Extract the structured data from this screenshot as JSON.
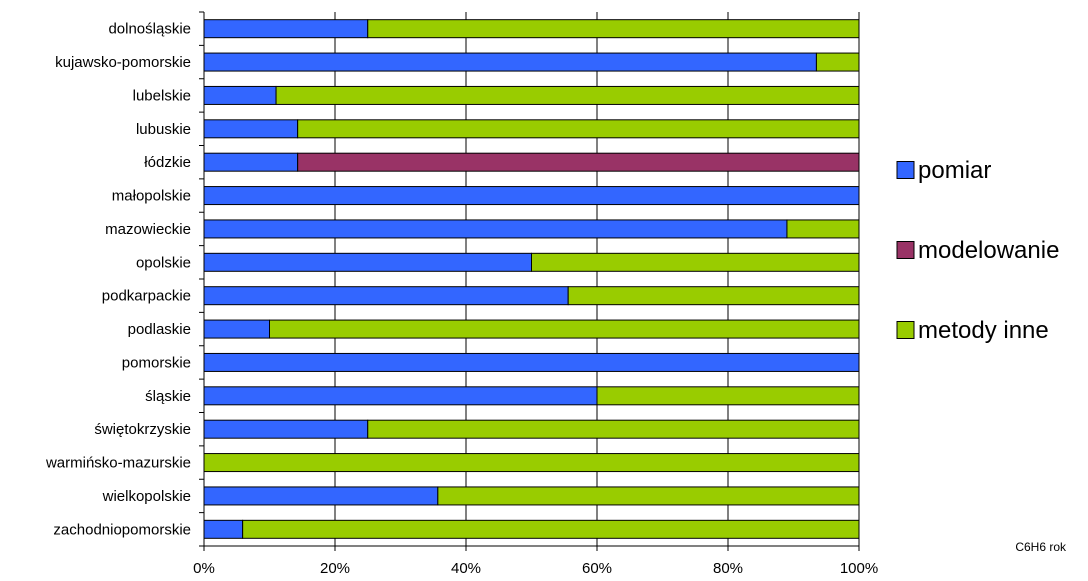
{
  "chart_data": {
    "type": "bar",
    "orientation": "horizontal",
    "stacked": "percent",
    "categories": [
      "dolnośląskie",
      "kujawsko-pomorskie",
      "lubelskie",
      "lubuskie",
      "łódzkie",
      "małopolskie",
      "mazowieckie",
      "opolskie",
      "podkarpackie",
      "podlaskie",
      "pomorskie",
      "śląskie",
      "świętokrzyskie",
      "warmińsko-mazurskie",
      "wielkopolskie",
      "zachodniopomorskie"
    ],
    "series": [
      {
        "name": "pomiar",
        "color": "#3366FF",
        "values": [
          25,
          93.5,
          11,
          14.3,
          14.3,
          100,
          89,
          50,
          55.6,
          10,
          100,
          60,
          25,
          0,
          35.7,
          5.9
        ]
      },
      {
        "name": "modelowanie",
        "color": "#993366",
        "values": [
          0,
          0,
          0,
          0,
          85.7,
          0,
          0,
          0,
          0,
          0,
          0,
          0,
          0,
          0,
          0,
          0
        ]
      },
      {
        "name": "metody inne",
        "color": "#99CC00",
        "values": [
          75,
          6.5,
          89,
          85.7,
          0,
          0,
          11,
          50,
          44.4,
          90,
          0,
          40,
          75,
          100,
          64.3,
          94.1
        ]
      }
    ],
    "xlim": [
      0,
      100
    ],
    "xticks": [
      "0%",
      "20%",
      "40%",
      "60%",
      "80%",
      "100%"
    ],
    "grid": true,
    "legend_position": "right",
    "annotation": "C6H6 rok"
  }
}
